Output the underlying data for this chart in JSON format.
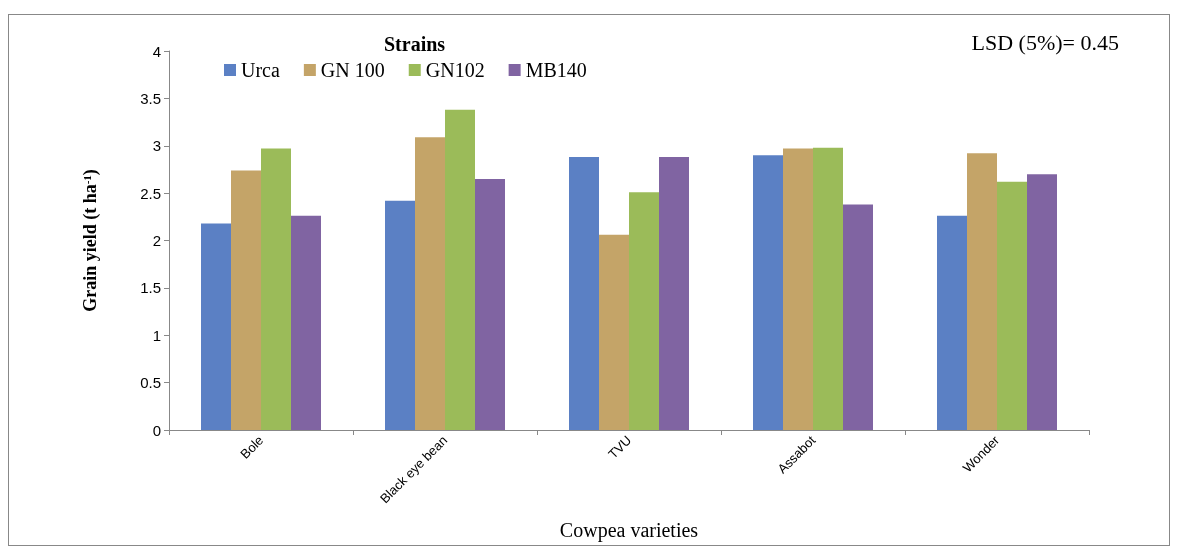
{
  "chart_data": {
    "type": "bar",
    "legend_title": "Strains",
    "xlabel": "Cowpea varieties",
    "ylabel": "Grain yield (t ha$^{-1}$)",
    "annotations": [
      "LSD (5%)= 0.45"
    ],
    "categories": [
      "Bole",
      "Black eye bean",
      "TVU",
      "Assabot",
      "Wonder"
    ],
    "series": [
      {
        "name": "Urca",
        "color": "#5b80c4",
        "values": [
          2.18,
          2.42,
          2.88,
          2.9,
          2.26
        ]
      },
      {
        "name": "GN 100",
        "color": "#c4a468",
        "values": [
          2.74,
          3.09,
          2.06,
          2.97,
          2.92
        ]
      },
      {
        "name": "GN102",
        "color": "#9bbb59",
        "values": [
          2.97,
          3.38,
          2.51,
          2.98,
          2.62
        ]
      },
      {
        "name": "MB140",
        "color": "#8064a2",
        "values": [
          2.26,
          2.65,
          2.88,
          2.38,
          2.7
        ]
      }
    ],
    "ylim": [
      0,
      4
    ],
    "yticks": [
      0,
      0.5,
      1,
      1.5,
      2,
      2.5,
      3,
      3.5,
      4
    ],
    "grid": false,
    "legend": "top"
  }
}
